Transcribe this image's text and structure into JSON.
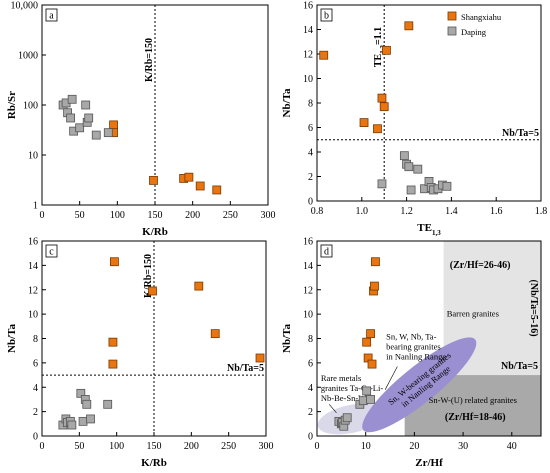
{
  "colors": {
    "shangxiahu": "#e8750f",
    "daping": "#a8a8a8",
    "barren_region": "#e4e4e4",
    "snw_region": "#a9a9a9",
    "rare_region": "#d9d9ea",
    "nanling_region": "#9a8fd0"
  },
  "legend": {
    "shangxiahu": "Shangxiahu",
    "daping": "Daping"
  },
  "chart_data": [
    {
      "panel": "a",
      "type": "scatter",
      "xlabel": "K/Rb",
      "ylabel": "Rb/Sr",
      "xlim": [
        0,
        300
      ],
      "ylim": [
        1,
        10000
      ],
      "yscale": "log",
      "xticks": [
        "0",
        "50",
        "100",
        "150",
        "200",
        "250",
        "300"
      ],
      "yticks": [
        "1",
        "10",
        "100",
        "1000",
        "10,000"
      ],
      "annotations": {
        "vline": "K/Rb=150"
      },
      "vline_x": 150,
      "series": [
        {
          "name": "Shangxiahu",
          "x": [
            95,
            95,
            148,
            188,
            195,
            210,
            232
          ],
          "y": [
            40,
            28,
            3.1,
            3.4,
            3.6,
            2.4,
            2.0
          ]
        },
        {
          "name": "Daping",
          "x": [
            28,
            32,
            34,
            38,
            40,
            42,
            50,
            58,
            60,
            62,
            72,
            88
          ],
          "y": [
            100,
            110,
            70,
            55,
            130,
            30,
            35,
            100,
            45,
            55,
            25,
            28
          ]
        }
      ]
    },
    {
      "panel": "b",
      "type": "scatter",
      "xlabel": "TE",
      "xlabel_sub": "1,3",
      "ylabel": "Nb/Ta",
      "xlim": [
        0.8,
        1.8
      ],
      "ylim": [
        0,
        16
      ],
      "xticks": [
        "0.8",
        "1.0",
        "1.2",
        "1.4",
        "1.6",
        "1.8"
      ],
      "yticks": [
        "0",
        "2",
        "4",
        "6",
        "8",
        "10",
        "12",
        "14",
        "16"
      ],
      "annotations": {
        "vline": "TE",
        "vline_sub": "1,3",
        "vline_suffix": "=1.1",
        "hline": "Nb/Ta=5"
      },
      "vline_x": 1.1,
      "hline_y": 5,
      "series": [
        {
          "name": "Shangxiahu",
          "x": [
            0.83,
            1.01,
            1.07,
            1.09,
            1.1,
            1.11,
            1.21
          ],
          "y": [
            11.9,
            6.4,
            5.9,
            8.4,
            7.7,
            12.3,
            14.3
          ]
        },
        {
          "name": "Daping",
          "x": [
            1.09,
            1.19,
            1.2,
            1.21,
            1.22,
            1.25,
            1.28,
            1.3,
            1.31,
            1.32,
            1.34,
            1.36,
            1.38
          ],
          "y": [
            1.4,
            3.7,
            3.0,
            2.8,
            0.9,
            2.6,
            1.0,
            1.6,
            1.1,
            0.9,
            1.0,
            1.3,
            1.2
          ]
        }
      ]
    },
    {
      "panel": "c",
      "type": "scatter",
      "xlabel": "K/Rb",
      "ylabel": "Nb/Ta",
      "xlim": [
        0,
        300
      ],
      "ylim": [
        0,
        16
      ],
      "xticks": [
        "0",
        "50",
        "100",
        "150",
        "200",
        "250",
        "300"
      ],
      "yticks": [
        "0",
        "2",
        "4",
        "6",
        "8",
        "10",
        "12",
        "14",
        "16"
      ],
      "annotations": {
        "vline": "K/Rb=150",
        "hline": "Nb/Ta=5"
      },
      "vline_x": 150,
      "hline_y": 5,
      "series": [
        {
          "name": "Shangxiahu",
          "x": [
            95,
            95,
            97,
            148,
            210,
            232,
            292
          ],
          "y": [
            7.7,
            5.9,
            14.3,
            11.9,
            12.3,
            8.4,
            6.4
          ]
        },
        {
          "name": "Daping",
          "x": [
            28,
            32,
            34,
            38,
            40,
            52,
            55,
            58,
            60,
            65,
            88
          ],
          "y": [
            0.9,
            1.4,
            1.1,
            1.2,
            0.9,
            3.5,
            1.2,
            3.0,
            2.6,
            1.4,
            2.6
          ]
        }
      ]
    },
    {
      "panel": "d",
      "type": "scatter",
      "xlabel": "Zr/Hf",
      "ylabel": "Nb/Ta",
      "xlim": [
        0,
        46
      ],
      "ylim": [
        0,
        16
      ],
      "xticks": [
        "0",
        "10",
        "20",
        "30",
        "40"
      ],
      "yticks": [
        "0",
        "2",
        "4",
        "6",
        "8",
        "10",
        "12",
        "14",
        "16"
      ],
      "annotations": {
        "barren": "Barren granites",
        "zrhf_26_46": "(Zr/Hf=26-46)",
        "nbta_5_16": "(Nb/Ta=5-16)",
        "nbta5": "Nb/Ta=5",
        "snw_related": "Sn-W-(U) related granites",
        "zrhf_18_46": "(Zr/Hf=18-46)",
        "nanling": [
          "Sn, W-bearing granites",
          "in Nanling Range"
        ],
        "snw_nb_ta": [
          "Sn, W, Nb, Ta-",
          "bearing granites",
          "in Nanling Range"
        ],
        "rare_metals": [
          "Rare metals",
          "granites Ta-Cs-Li-",
          "Nb-Be-Sn-W"
        ]
      },
      "series": [
        {
          "name": "Shangxiahu",
          "x": [
            10.2,
            10.5,
            11.0,
            11.3,
            11.6,
            11.8,
            12.0
          ],
          "y": [
            7.7,
            6.4,
            8.4,
            5.9,
            11.9,
            12.3,
            14.3
          ]
        },
        {
          "name": "Daping",
          "x": [
            4.5,
            5.0,
            5.2,
            5.5,
            5.8,
            6.2,
            8.8,
            9.5,
            10.2,
            11.0
          ],
          "y": [
            1.2,
            1.0,
            1.1,
            0.8,
            1.3,
            1.5,
            2.6,
            2.9,
            3.7,
            3.0
          ]
        }
      ]
    }
  ]
}
